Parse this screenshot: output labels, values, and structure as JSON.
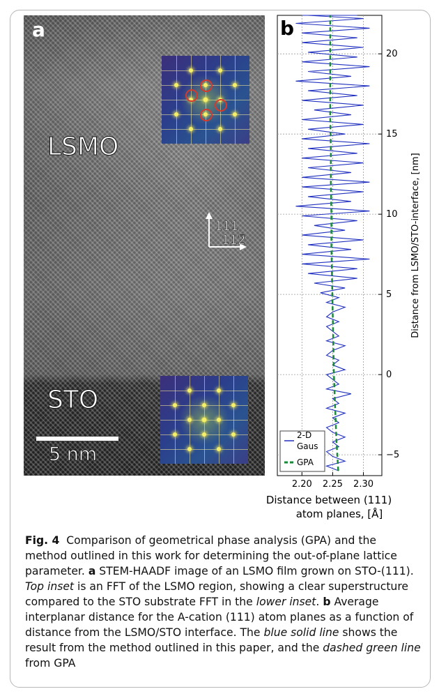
{
  "panel_a": {
    "letter": "a",
    "region_top": "LSMO",
    "region_bottom": "STO",
    "scale_bar": "5 nm",
    "direction_up": "111",
    "direction_right": "112̄"
  },
  "panel_b": {
    "letter": "b",
    "ylabel": "Distance from LSMO/STO-interface, [nm]",
    "xlabel_line1": "Distance between (111)",
    "xlabel_line2": "atom planes, [Å]"
  },
  "chart_data": {
    "type": "line",
    "xlabel": "Distance between (111) atom planes, [Å]",
    "ylabel": "Distance from LSMO/STO-interface, [nm]",
    "xlim": [
      2.16,
      2.33
    ],
    "ylim": [
      -6.3,
      22.4
    ],
    "xticks": [
      "2.20",
      "2.25",
      "2.30"
    ],
    "yticks": [
      "−5",
      "0",
      "5",
      "10",
      "15",
      "20"
    ],
    "grid": true,
    "legend": "bottom-left",
    "series": [
      {
        "name": "2-D Gaus",
        "color": "#1f2fbf",
        "style": "solid",
        "x": [
          2.26,
          2.24,
          2.27,
          2.25,
          2.24,
          2.26,
          2.25,
          2.27,
          2.25,
          2.24,
          2.26,
          2.25,
          2.27,
          2.24,
          2.26,
          2.25,
          2.28,
          2.24,
          2.26,
          2.25,
          2.24,
          2.27,
          2.25,
          2.26,
          2.24,
          2.25,
          2.27,
          2.24,
          2.26,
          2.25,
          2.24,
          2.26,
          2.24,
          2.25,
          2.27,
          2.24,
          2.26,
          2.23,
          2.27,
          2.22,
          2.29,
          2.21,
          2.29,
          2.2,
          2.31,
          2.2,
          2.28,
          2.21,
          2.3,
          2.2,
          2.27,
          2.22,
          2.29,
          2.2,
          2.31,
          2.19,
          2.28,
          2.21,
          2.3,
          2.2,
          2.31,
          2.2,
          2.28,
          2.21,
          2.3,
          2.2,
          2.29,
          2.21,
          2.31,
          2.2,
          2.27,
          2.21,
          2.3,
          2.2,
          2.28,
          2.22,
          2.3,
          2.2,
          2.29,
          2.21,
          2.31,
          2.19,
          2.28,
          2.21,
          2.31,
          2.2,
          2.29,
          2.21,
          2.3,
          2.2,
          2.29,
          2.2,
          2.31,
          2.19,
          2.3,
          2.21,
          2.29,
          2.2
        ],
        "y": [
          -6.0,
          -5.7,
          -5.4,
          -5.1,
          -4.8,
          -4.5,
          -4.2,
          -3.9,
          -3.6,
          -3.3,
          -3.0,
          -2.7,
          -2.4,
          -2.1,
          -1.8,
          -1.5,
          -1.2,
          -0.9,
          -0.6,
          -0.3,
          0.0,
          0.3,
          0.6,
          0.9,
          1.2,
          1.5,
          1.8,
          2.1,
          2.4,
          2.7,
          3.0,
          3.3,
          3.6,
          3.9,
          4.2,
          4.5,
          4.8,
          5.1,
          5.4,
          5.7,
          6.0,
          6.3,
          6.6,
          6.9,
          7.2,
          7.5,
          7.8,
          8.1,
          8.4,
          8.7,
          9.0,
          9.3,
          9.6,
          9.9,
          10.2,
          10.5,
          10.8,
          11.1,
          11.4,
          11.7,
          12.0,
          12.3,
          12.6,
          12.9,
          13.2,
          13.5,
          13.8,
          14.1,
          14.4,
          14.7,
          15.0,
          15.3,
          15.6,
          15.9,
          16.2,
          16.5,
          16.8,
          17.1,
          17.4,
          17.7,
          18.0,
          18.3,
          18.6,
          18.9,
          19.2,
          19.5,
          19.8,
          20.1,
          20.4,
          20.7,
          21.0,
          21.3,
          21.6,
          21.9,
          22.2,
          22.4,
          22.4,
          22.4
        ]
      },
      {
        "name": "GPA",
        "color": "#1a8a3a",
        "style": "dashed",
        "x": [
          2.259,
          2.256,
          2.254,
          2.252,
          2.251,
          2.25,
          2.249,
          2.248,
          2.248,
          2.247,
          2.247,
          2.246,
          2.246,
          2.246,
          2.246,
          2.246
        ],
        "y": [
          -6.0,
          -4.0,
          -2.0,
          0.0,
          2.0,
          4.0,
          6.0,
          8.0,
          10.0,
          12.0,
          14.0,
          16.0,
          18.0,
          20.0,
          21.5,
          22.4
        ]
      }
    ]
  },
  "caption": {
    "fig_label": "Fig. 4",
    "text1": "Comparison of geometrical phase analysis (GPA) and the method outlined in this work for determining the out-of-plane lattice parameter. ",
    "a_label": "a",
    "text2": " STEM-HAADF image of an LSMO film grown on STO-(111). ",
    "top_inset": "Top inset",
    "text3": " is an FFT of the LSMO region, showing a clear superstructure compared to the STO substrate FFT in the ",
    "lower_inset": "lower inset",
    "text4": ".",
    "b_label": "b",
    "text5": " Average interplanar distance for the A-cation (111) atom planes as a function of distance from the LSMO/STO interface. The ",
    "blue_solid_line": "blue solid line",
    "text6": " shows the result from the method outlined in this paper, and the ",
    "dashed_green_line": "dashed green line",
    "text7": " from GPA"
  }
}
